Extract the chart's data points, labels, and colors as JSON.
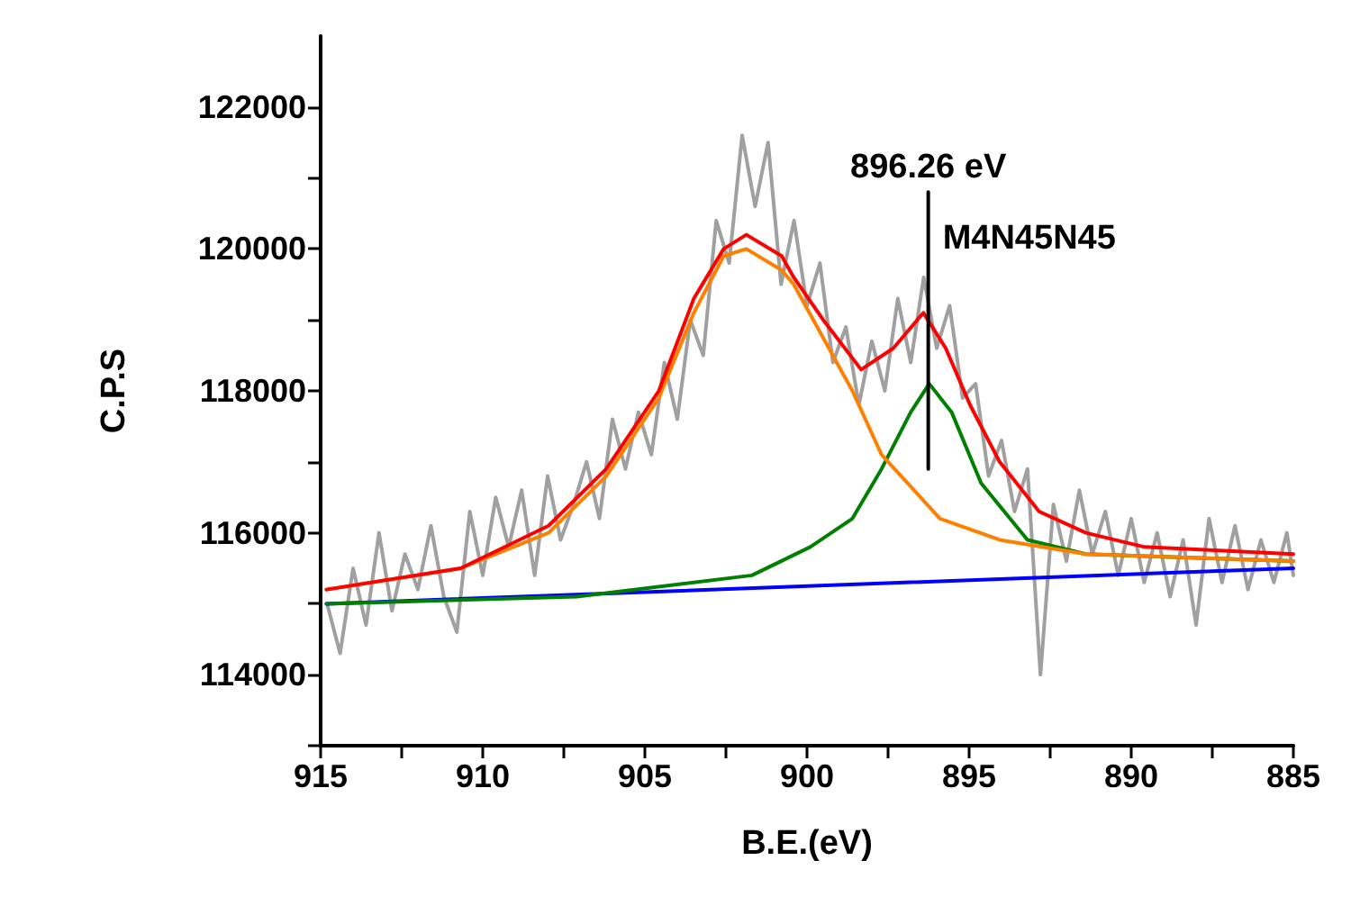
{
  "chart_data": {
    "type": "line",
    "xlabel": "B.E.(eV)",
    "ylabel": "C.P.S",
    "xlim": [
      915,
      885
    ],
    "xticks": [
      915,
      {
        "value": 912.5,
        "label": null
      },
      910,
      {
        "value": 907.5,
        "label": null
      },
      905,
      {
        "value": 902.5,
        "label": null
      },
      900,
      {
        "value": 897.5,
        "label": null
      },
      895,
      {
        "value": 892.5,
        "label": null
      },
      890,
      {
        "value": 887.5,
        "label": null
      },
      885
    ],
    "ylim": [
      113000,
      123000
    ],
    "yticks": [
      {
        "value": 113000,
        "label": null
      },
      114000,
      {
        "value": 115000,
        "label": null
      },
      116000,
      {
        "value": 117000,
        "label": null
      },
      118000,
      {
        "value": 119000,
        "label": null
      },
      120000,
      {
        "value": 121000,
        "label": null
      },
      122000
    ],
    "grid": false,
    "marker": "none",
    "line_style": "solid",
    "annotations": [
      {
        "text": "896.26 eV",
        "x": 896.26,
        "y": 120800
      },
      "M4N45N45"
    ],
    "series": [
      {
        "color": "#a0a0a0",
        "x": [
          914.8,
          914.4,
          914.0,
          913.6,
          913.2,
          912.8,
          912.4,
          912.0,
          911.6,
          911.2,
          910.8,
          910.4,
          910.0,
          909.6,
          909.2,
          908.8,
          908.4,
          908.0,
          907.6,
          907.2,
          906.8,
          906.4,
          906.0,
          905.6,
          905.2,
          904.8,
          904.4,
          904.0,
          903.6,
          903.2,
          902.8,
          902.4,
          902.0,
          901.6,
          901.2,
          900.8,
          900.4,
          900.0,
          899.6,
          899.2,
          898.8,
          898.4,
          898.0,
          897.6,
          897.2,
          896.8,
          896.4,
          896.0,
          895.6,
          895.2,
          894.8,
          894.4,
          894.0,
          893.6,
          893.2,
          892.8,
          892.4,
          892.0,
          891.6,
          891.2,
          890.8,
          890.4,
          890.0,
          889.6,
          889.2,
          888.8,
          888.4,
          888.0,
          887.6,
          887.2,
          886.8,
          886.4,
          886.0,
          885.6,
          885.2,
          885.0
        ],
        "values": [
          115000,
          114300,
          115500,
          114700,
          116000,
          114900,
          115700,
          115200,
          116100,
          115100,
          114600,
          116300,
          115400,
          116500,
          115800,
          116600,
          115400,
          116800,
          115900,
          116400,
          117000,
          116200,
          117600,
          116900,
          117700,
          117100,
          118400,
          117600,
          119000,
          118500,
          120400,
          119800,
          121600,
          120600,
          121500,
          119500,
          120400,
          119200,
          119800,
          118400,
          118900,
          117800,
          118700,
          118000,
          119300,
          118400,
          119600,
          118600,
          119200,
          117900,
          118100,
          116800,
          117300,
          116300,
          116900,
          114000,
          116400,
          115600,
          116600,
          115700,
          116300,
          115400,
          116200,
          115300,
          116000,
          115100,
          115900,
          114700,
          116200,
          115300,
          116100,
          115200,
          115900,
          115300,
          116000,
          115400
        ]
      },
      {
        "color": "#0000ff",
        "x": [
          914.82,
          885
        ],
        "values": [
          115000,
          115500
        ]
      },
      {
        "color": "#008000",
        "x": [
          914.82,
          907.1,
          901.7,
          899.9,
          898.6,
          897.7,
          896.8,
          896.23,
          895.54,
          894.63,
          893.2,
          891.4,
          885
        ],
        "values": [
          115000,
          115100,
          115400,
          115800,
          116200,
          116900,
          117700,
          118100,
          117700,
          116700,
          115900,
          115700,
          115600
        ]
      },
      {
        "color": "#ff8000",
        "x": [
          914.82,
          910.68,
          907.97,
          906.19,
          904.57,
          903.49,
          902.57,
          901.87,
          900.78,
          900.41,
          898.6,
          897.7,
          895.9,
          894.06,
          891.4,
          885
        ],
        "values": [
          115200,
          115500,
          116000,
          116800,
          117900,
          119100,
          119900,
          120000,
          119700,
          119500,
          118000,
          117100,
          116200,
          115900,
          115700,
          115600
        ]
      },
      {
        "color": "#ff0000",
        "x": [
          914.82,
          910.68,
          907.97,
          906.19,
          904.57,
          903.49,
          902.57,
          901.87,
          900.78,
          900.41,
          899.5,
          898.33,
          897.34,
          896.41,
          895.72,
          894.97,
          894.06,
          892.84,
          891.4,
          889.59,
          885
        ],
        "values": [
          115200,
          115500,
          116100,
          116900,
          118000,
          119300,
          120000,
          120200,
          119900,
          119600,
          119000,
          118300,
          118600,
          119100,
          118600,
          117800,
          117000,
          116300,
          116000,
          115800,
          115700
        ]
      },
      {
        "color": "#000000",
        "x": [
          896.26,
          896.26
        ],
        "values": [
          116900,
          120800
        ]
      }
    ]
  }
}
